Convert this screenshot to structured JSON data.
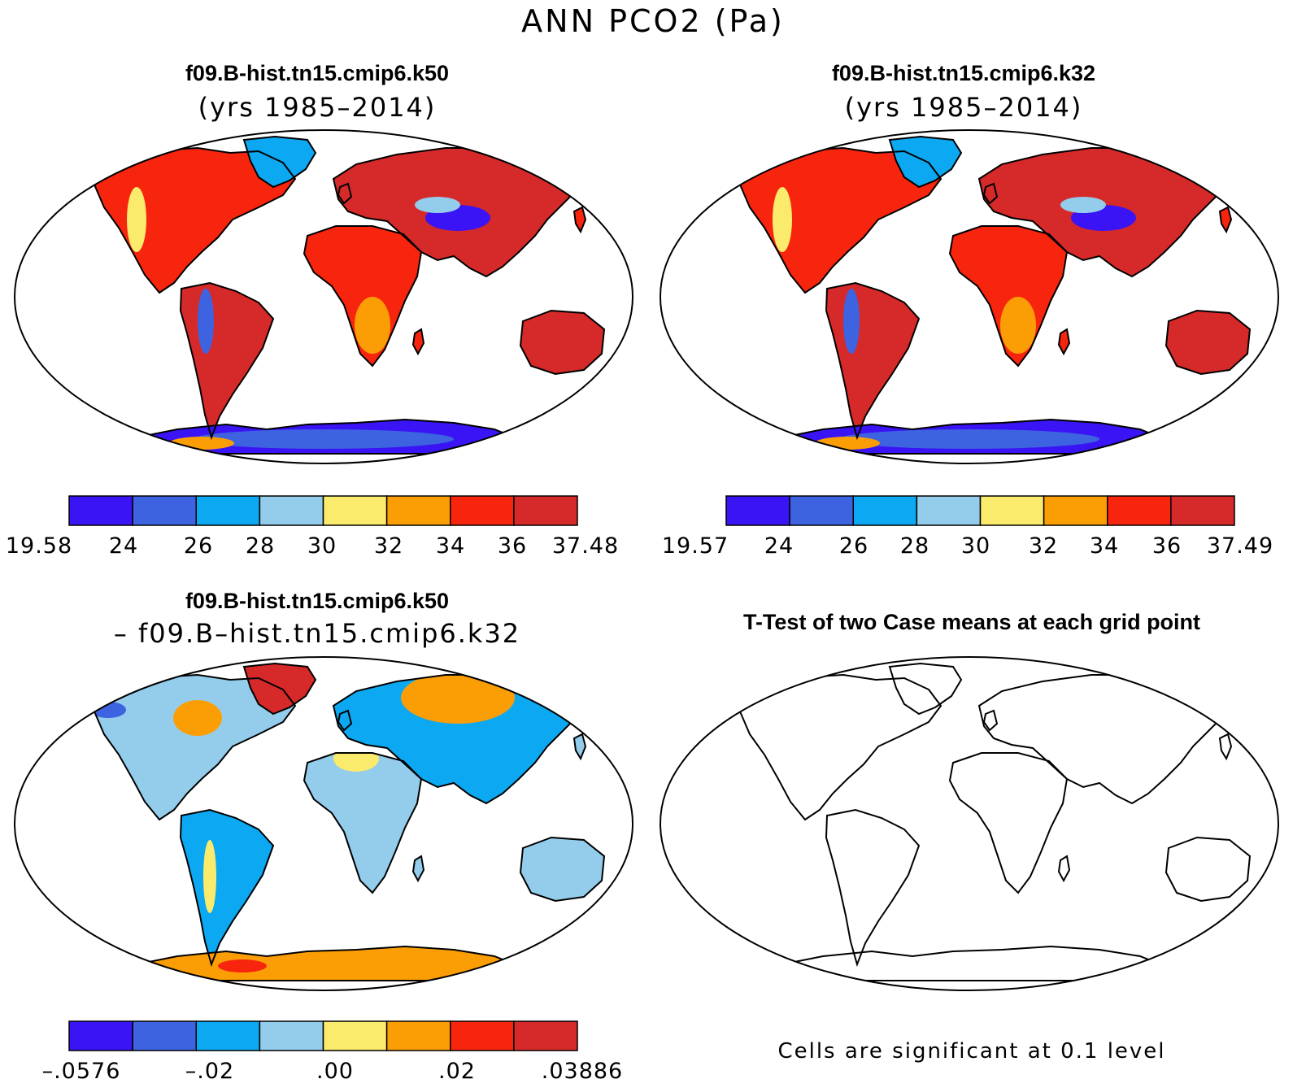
{
  "figure": {
    "title": "ANN PCO2 (Pa)"
  },
  "panels": [
    {
      "id": "case1",
      "title": "f09.B-hist.tn15.cmip6.k50",
      "subtitle": "(yrs 1985–2014)",
      "colorbar": [
        "19.58",
        "24",
        "26",
        "28",
        "30",
        "32",
        "34",
        "36",
        "37.48"
      ]
    },
    {
      "id": "case2",
      "title": "f09.B-hist.tn15.cmip6.k32",
      "subtitle": "(yrs 1985–2014)",
      "colorbar": [
        "19.57",
        "24",
        "26",
        "28",
        "30",
        "32",
        "34",
        "36",
        "37.49"
      ]
    },
    {
      "id": "diff",
      "title": "f09.B-hist.tn15.cmip6.k50",
      "subtitle": "– f09.B–hist.tn15.cmip6.k32",
      "colorbar": [
        "–.0576",
        "–.02",
        ".00",
        ".02",
        ".03886"
      ]
    },
    {
      "id": "ttest",
      "title": "T-Test of two Case means at each grid point",
      "note": "Cells are significant at 0.1 level"
    }
  ],
  "colors": {
    "levels": [
      "#3a14f4",
      "#3d63e1",
      "#0ca8f2",
      "#93cdeb",
      "#fbeb6c",
      "#fb9e06",
      "#f7250e",
      "#d52a29"
    ],
    "ocean": "#ffffff",
    "coast": "#000000"
  }
}
